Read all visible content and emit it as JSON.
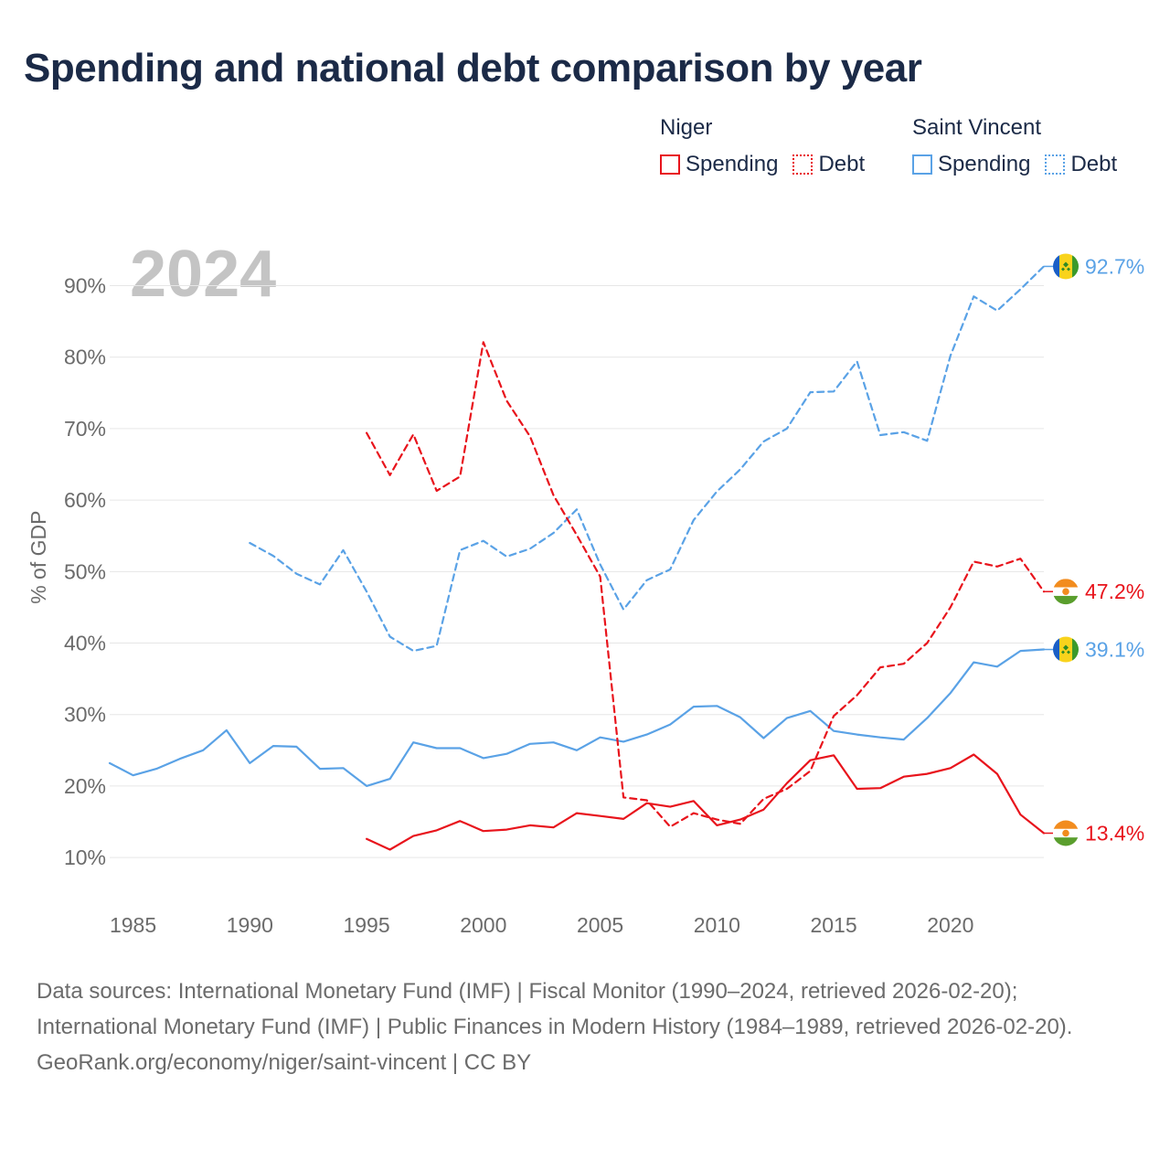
{
  "title": "Spending and national debt comparison by year",
  "legend": {
    "groups": [
      {
        "name": "Niger",
        "color": "#e8141c",
        "items": [
          "Spending",
          "Debt"
        ]
      },
      {
        "name": "Saint Vincent",
        "color": "#5aa2e6",
        "items": [
          "Spending",
          "Debt"
        ]
      }
    ]
  },
  "footer": {
    "source": "Data sources: International Monetary Fund (IMF) | Fiscal Monitor (1990–2024, retrieved 2026-02-20); International Monetary Fund (IMF) | Public Finances in Modern History (1984–1989, retrieved 2026-02-20).",
    "credit": "GeoRank.org/economy/niger/saint-vincent | CC BY"
  },
  "chart_data": {
    "type": "line",
    "year_watermark": "2024",
    "ylabel": "% of GDP",
    "xlabel": "",
    "xlim": [
      1984,
      2024
    ],
    "ylim": [
      4,
      98
    ],
    "x_ticks": [
      1985,
      1990,
      1995,
      2000,
      2005,
      2010,
      2015,
      2020
    ],
    "y_ticks": [
      10,
      20,
      30,
      40,
      50,
      60,
      70,
      80,
      90
    ],
    "grid": true,
    "series": [
      {
        "name": "Saint Vincent Spending",
        "country": "Saint Vincent",
        "metric": "Spending",
        "color": "#5aa2e6",
        "style": "solid",
        "flag": "saint-vincent-flag-icon",
        "end_label": "39.1%",
        "points": [
          [
            1984,
            23.2
          ],
          [
            1985,
            21.5
          ],
          [
            1986,
            22.4
          ],
          [
            1987,
            23.8
          ],
          [
            1988,
            25.0
          ],
          [
            1989,
            27.8
          ],
          [
            1990,
            23.2
          ],
          [
            1991,
            25.6
          ],
          [
            1992,
            25.5
          ],
          [
            1993,
            22.4
          ],
          [
            1994,
            22.5
          ],
          [
            1995,
            20.0
          ],
          [
            1996,
            21.0
          ],
          [
            1997,
            26.1
          ],
          [
            1998,
            25.3
          ],
          [
            1999,
            25.3
          ],
          [
            2000,
            23.9
          ],
          [
            2001,
            24.5
          ],
          [
            2002,
            25.9
          ],
          [
            2003,
            26.1
          ],
          [
            2004,
            25.0
          ],
          [
            2005,
            26.8
          ],
          [
            2006,
            26.2
          ],
          [
            2007,
            27.2
          ],
          [
            2008,
            28.6
          ],
          [
            2009,
            31.1
          ],
          [
            2010,
            31.2
          ],
          [
            2011,
            29.6
          ],
          [
            2012,
            26.7
          ],
          [
            2013,
            29.5
          ],
          [
            2014,
            30.5
          ],
          [
            2015,
            27.7
          ],
          [
            2016,
            27.2
          ],
          [
            2017,
            26.8
          ],
          [
            2018,
            26.5
          ],
          [
            2019,
            29.5
          ],
          [
            2020,
            33.0
          ],
          [
            2021,
            37.3
          ],
          [
            2022,
            36.7
          ],
          [
            2023,
            38.9
          ],
          [
            2024,
            39.1
          ]
        ]
      },
      {
        "name": "Saint Vincent Debt",
        "country": "Saint Vincent",
        "metric": "Debt",
        "color": "#5aa2e6",
        "style": "dashed",
        "flag": "saint-vincent-flag-icon",
        "end_label": "92.7%",
        "points": [
          [
            1990,
            54.0
          ],
          [
            1991,
            52.2
          ],
          [
            1992,
            49.7
          ],
          [
            1993,
            48.2
          ],
          [
            1994,
            53.0
          ],
          [
            1995,
            47.2
          ],
          [
            1996,
            40.9
          ],
          [
            1997,
            38.9
          ],
          [
            1998,
            39.6
          ],
          [
            1999,
            53.0
          ],
          [
            2000,
            54.3
          ],
          [
            2001,
            52.1
          ],
          [
            2002,
            53.2
          ],
          [
            2003,
            55.4
          ],
          [
            2004,
            58.7
          ],
          [
            2005,
            51.0
          ],
          [
            2006,
            44.7
          ],
          [
            2007,
            48.8
          ],
          [
            2008,
            50.3
          ],
          [
            2009,
            57.2
          ],
          [
            2010,
            61.2
          ],
          [
            2011,
            64.3
          ],
          [
            2012,
            68.2
          ],
          [
            2013,
            70.0
          ],
          [
            2014,
            75.1
          ],
          [
            2015,
            75.2
          ],
          [
            2016,
            79.4
          ],
          [
            2017,
            69.1
          ],
          [
            2018,
            69.5
          ],
          [
            2019,
            68.3
          ],
          [
            2020,
            80.2
          ],
          [
            2021,
            88.5
          ],
          [
            2022,
            86.5
          ],
          [
            2023,
            89.5
          ],
          [
            2024,
            92.7
          ]
        ]
      },
      {
        "name": "Niger Spending",
        "country": "Niger",
        "metric": "Spending",
        "color": "#e8141c",
        "style": "solid",
        "flag": "niger-flag-icon",
        "end_label": "13.4%",
        "points": [
          [
            1995,
            12.6
          ],
          [
            1996,
            11.1
          ],
          [
            1997,
            13.0
          ],
          [
            1998,
            13.8
          ],
          [
            1999,
            15.1
          ],
          [
            2000,
            13.7
          ],
          [
            2001,
            13.9
          ],
          [
            2002,
            14.5
          ],
          [
            2003,
            14.2
          ],
          [
            2004,
            16.2
          ],
          [
            2005,
            15.8
          ],
          [
            2006,
            15.4
          ],
          [
            2007,
            17.6
          ],
          [
            2008,
            17.1
          ],
          [
            2009,
            17.9
          ],
          [
            2010,
            14.5
          ],
          [
            2011,
            15.3
          ],
          [
            2012,
            16.7
          ],
          [
            2013,
            20.4
          ],
          [
            2014,
            23.6
          ],
          [
            2015,
            24.3
          ],
          [
            2016,
            19.6
          ],
          [
            2017,
            19.7
          ],
          [
            2018,
            21.3
          ],
          [
            2019,
            21.7
          ],
          [
            2020,
            22.5
          ],
          [
            2021,
            24.4
          ],
          [
            2022,
            21.7
          ],
          [
            2023,
            16.0
          ],
          [
            2024,
            13.4
          ]
        ]
      },
      {
        "name": "Niger Debt",
        "country": "Niger",
        "metric": "Debt",
        "color": "#e8141c",
        "style": "dashed",
        "flag": "niger-flag-icon",
        "end_label": "47.2%",
        "points": [
          [
            1995,
            69.4
          ],
          [
            1996,
            63.5
          ],
          [
            1997,
            69.2
          ],
          [
            1998,
            61.3
          ],
          [
            1999,
            63.3
          ],
          [
            2000,
            82.1
          ],
          [
            2001,
            73.9
          ],
          [
            2002,
            68.9
          ],
          [
            2003,
            60.7
          ],
          [
            2004,
            55.1
          ],
          [
            2005,
            49.3
          ],
          [
            2006,
            18.4
          ],
          [
            2007,
            18.0
          ],
          [
            2008,
            14.3
          ],
          [
            2009,
            16.2
          ],
          [
            2010,
            15.3
          ],
          [
            2011,
            14.7
          ],
          [
            2012,
            18.2
          ],
          [
            2013,
            19.6
          ],
          [
            2014,
            22.1
          ],
          [
            2015,
            29.8
          ],
          [
            2016,
            32.7
          ],
          [
            2017,
            36.6
          ],
          [
            2018,
            37.1
          ],
          [
            2019,
            40.0
          ],
          [
            2020,
            45.0
          ],
          [
            2021,
            51.4
          ],
          [
            2022,
            50.7
          ],
          [
            2023,
            51.8
          ],
          [
            2024,
            47.2
          ]
        ]
      }
    ]
  }
}
